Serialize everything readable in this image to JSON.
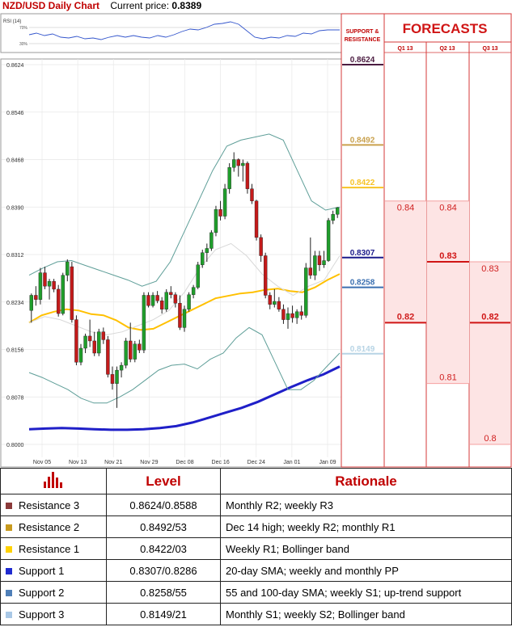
{
  "header": {
    "title": "NZD/USD Daily Chart",
    "price_label": "Current price:",
    "price_value": "0.8389"
  },
  "rsi": {
    "label": "RSI (14)",
    "upper": "70%",
    "lower": "30%"
  },
  "sr_header": [
    "SUPPORT &",
    "RESISTANCE"
  ],
  "forecast_title": "FORECASTS",
  "forecast_quarters": [
    "Q1 13",
    "Q2 13",
    "Q3 13"
  ],
  "chart_data": {
    "type": "candlestick",
    "title": "NZD/USD Daily Chart",
    "y_ticks": [
      "0.8624",
      "0.8546",
      "0.8468",
      "0.8390",
      "0.8312",
      "0.8234",
      "0.8156",
      "0.8078",
      "0.8000"
    ],
    "ylim": [
      0.8,
      0.8624
    ],
    "x_ticks": [
      "Nov 05",
      "Nov 13",
      "Nov 21",
      "Nov 29",
      "Dec 08",
      "Dec 16",
      "Dec 24",
      "Jan 01",
      "Jan 09"
    ],
    "candles": [
      [
        0.822,
        0.8248,
        0.82,
        0.8245
      ],
      [
        0.8245,
        0.826,
        0.8228,
        0.8238
      ],
      [
        0.8238,
        0.829,
        0.823,
        0.8282
      ],
      [
        0.8282,
        0.8292,
        0.8255,
        0.826
      ],
      [
        0.826,
        0.8272,
        0.8238,
        0.8268
      ],
      [
        0.8268,
        0.8272,
        0.825,
        0.8255
      ],
      [
        0.8255,
        0.8262,
        0.821,
        0.8215
      ],
      [
        0.8215,
        0.8282,
        0.8212,
        0.8278
      ],
      [
        0.8278,
        0.8304,
        0.8268,
        0.83
      ],
      [
        0.8292,
        0.83,
        0.82,
        0.8205
      ],
      [
        0.8205,
        0.8212,
        0.813,
        0.8135
      ],
      [
        0.8135,
        0.8165,
        0.813,
        0.8158
      ],
      [
        0.8158,
        0.8182,
        0.815,
        0.8178
      ],
      [
        0.8178,
        0.8205,
        0.816,
        0.817
      ],
      [
        0.817,
        0.8185,
        0.8145,
        0.815
      ],
      [
        0.815,
        0.819,
        0.8145,
        0.8185
      ],
      [
        0.8185,
        0.8192,
        0.8165,
        0.8172
      ],
      [
        0.8172,
        0.8178,
        0.811,
        0.8115
      ],
      [
        0.8115,
        0.8128,
        0.809,
        0.81
      ],
      [
        0.81,
        0.8128,
        0.806,
        0.8122
      ],
      [
        0.8122,
        0.8135,
        0.811,
        0.813
      ],
      [
        0.813,
        0.8175,
        0.8125,
        0.817
      ],
      [
        0.817,
        0.82,
        0.8135,
        0.814
      ],
      [
        0.814,
        0.817,
        0.8135,
        0.8165
      ],
      [
        0.8165,
        0.8172,
        0.815,
        0.8155
      ],
      [
        0.8155,
        0.825,
        0.815,
        0.8245
      ],
      [
        0.8245,
        0.825,
        0.8225,
        0.8228
      ],
      [
        0.8228,
        0.825,
        0.8225,
        0.8245
      ],
      [
        0.8245,
        0.8252,
        0.8232,
        0.8236
      ],
      [
        0.8236,
        0.8242,
        0.8215,
        0.8222
      ],
      [
        0.8222,
        0.8255,
        0.8218,
        0.825
      ],
      [
        0.825,
        0.826,
        0.824,
        0.8246
      ],
      [
        0.8246,
        0.825,
        0.8225,
        0.8232
      ],
      [
        0.8232,
        0.8245,
        0.8188,
        0.8192
      ],
      [
        0.8192,
        0.8228,
        0.8185,
        0.8222
      ],
      [
        0.8222,
        0.825,
        0.8218,
        0.8246
      ],
      [
        0.8246,
        0.8262,
        0.824,
        0.8258
      ],
      [
        0.8258,
        0.83,
        0.8255,
        0.8295
      ],
      [
        0.8295,
        0.832,
        0.829,
        0.8315
      ],
      [
        0.8315,
        0.833,
        0.83,
        0.8322
      ],
      [
        0.8322,
        0.8352,
        0.8318,
        0.8348
      ],
      [
        0.8348,
        0.8392,
        0.8342,
        0.8386
      ],
      [
        0.8386,
        0.84,
        0.8368,
        0.8375
      ],
      [
        0.8375,
        0.8428,
        0.837,
        0.842
      ],
      [
        0.842,
        0.8462,
        0.8412,
        0.8455
      ],
      [
        0.8455,
        0.848,
        0.8448,
        0.8468
      ],
      [
        0.8468,
        0.847,
        0.844,
        0.8458
      ],
      [
        0.8458,
        0.8468,
        0.8432,
        0.8462
      ],
      [
        0.8462,
        0.8465,
        0.8412,
        0.842
      ],
      [
        0.842,
        0.8428,
        0.8395,
        0.84
      ],
      [
        0.84,
        0.8402,
        0.8335,
        0.834
      ],
      [
        0.834,
        0.8345,
        0.83,
        0.831
      ],
      [
        0.831,
        0.8315,
        0.824,
        0.8245
      ],
      [
        0.8245,
        0.825,
        0.8222,
        0.823
      ],
      [
        0.823,
        0.8255,
        0.8225,
        0.8235
      ],
      [
        0.8235,
        0.8242,
        0.8218,
        0.8222
      ],
      [
        0.8222,
        0.823,
        0.8198,
        0.8205
      ],
      [
        0.8205,
        0.8225,
        0.819,
        0.8215
      ],
      [
        0.8215,
        0.8228,
        0.82,
        0.8208
      ],
      [
        0.8208,
        0.8222,
        0.8198,
        0.8218
      ],
      [
        0.8218,
        0.8228,
        0.8205,
        0.8212
      ],
      [
        0.8212,
        0.8298,
        0.8208,
        0.829
      ],
      [
        0.829,
        0.834,
        0.8272,
        0.8278
      ],
      [
        0.8278,
        0.8318,
        0.827,
        0.831
      ],
      [
        0.831,
        0.8318,
        0.8285,
        0.8295
      ],
      [
        0.8295,
        0.8318,
        0.829,
        0.8302
      ],
      [
        0.8302,
        0.8372,
        0.83,
        0.8368
      ],
      [
        0.8368,
        0.8384,
        0.8362,
        0.8378
      ],
      [
        0.8378,
        0.839,
        0.8372,
        0.8389
      ]
    ],
    "lines": [
      {
        "color": "#ffc000",
        "values": [
          0.82,
          0.8212,
          0.8218,
          0.8222,
          0.822,
          0.8214,
          0.8212,
          0.8204,
          0.8192,
          0.8188,
          0.819,
          0.82,
          0.821,
          0.822,
          0.823,
          0.824,
          0.8244,
          0.8248,
          0.825,
          0.8254,
          0.8256,
          0.8252,
          0.825,
          0.8258,
          0.827,
          0.828
        ]
      },
      {
        "color": "#1f1fc8",
        "values": [
          0.8025,
          0.8026,
          0.8027,
          0.8026,
          0.8025,
          0.8024,
          0.8024,
          0.8025,
          0.8027,
          0.803,
          0.8036,
          0.8044,
          0.8052,
          0.806,
          0.807,
          0.8082,
          0.8094,
          0.8105,
          0.8115,
          0.8128
        ]
      },
      {
        "color": "#5e9e98",
        "values": [
          0.8278,
          0.829,
          0.83,
          0.8302,
          0.8294,
          0.8286,
          0.8278,
          0.827,
          0.826,
          0.8268,
          0.83,
          0.835,
          0.84,
          0.845,
          0.849,
          0.85,
          0.8505,
          0.851,
          0.85,
          0.845,
          0.84,
          0.8385,
          0.839
        ]
      },
      {
        "color": "#5e9e98",
        "values": [
          0.8118,
          0.811,
          0.81,
          0.809,
          0.8076,
          0.8068,
          0.8068,
          0.8078,
          0.809,
          0.8106,
          0.8122,
          0.813,
          0.8132,
          0.8124,
          0.814,
          0.815,
          0.8175,
          0.8192,
          0.818,
          0.8135,
          0.809,
          0.809,
          0.8105,
          0.8128,
          0.815
        ]
      },
      {
        "color": "#d8d8d8",
        "values": [
          0.82,
          0.821,
          0.8205,
          0.8195,
          0.8185,
          0.818,
          0.8185,
          0.8195,
          0.8205,
          0.822,
          0.825,
          0.829,
          0.832,
          0.833,
          0.831,
          0.828,
          0.826,
          0.8245,
          0.826,
          0.827,
          0.831
        ]
      }
    ],
    "sr_levels": [
      {
        "value": 0.8624,
        "label": "0.8624",
        "color": "#4b1c41"
      },
      {
        "value": 0.8492,
        "label": "0.8492",
        "color": "#c9a14d"
      },
      {
        "value": 0.8422,
        "label": "0.8422",
        "color": "#f7c325"
      },
      {
        "value": 0.8307,
        "label": "0.8307",
        "color": "#1a1a8a"
      },
      {
        "value": 0.8258,
        "label": "0.8258",
        "color": "#3a6fb0"
      },
      {
        "value": 0.8149,
        "label": "0.8149",
        "color": "#b7d4e5"
      }
    ],
    "forecasts": [
      {
        "quarter": "Q1 13",
        "high": 0.84,
        "low": 0.82,
        "high_label": "0.84",
        "low_label": "0.82"
      },
      {
        "quarter": "Q2 13",
        "high": 0.84,
        "mid": 0.83,
        "low": 0.81,
        "high_label": "0.84",
        "mid_label": "0.83",
        "low_label": "0.81"
      },
      {
        "quarter": "Q3 13",
        "high": 0.83,
        "mid": 0.82,
        "low": 0.8,
        "high_label": "0.83",
        "mid_label": "0.82",
        "low_label": "0.8"
      }
    ]
  },
  "table": {
    "col_level": "Level",
    "col_rationale": "Rationale",
    "rows": [
      {
        "name": "Resistance 3",
        "level": "0.8624/0.8588",
        "rationale": "Monthly R2; weekly R3",
        "color": "#8b3a3a"
      },
      {
        "name": "Resistance 2",
        "level": "0.8492/53",
        "rationale": "Dec 14 high; weekly R2; monthly R1",
        "color": "#c89a1e"
      },
      {
        "name": "Resistance 1",
        "level": "0.8422/03",
        "rationale": "Weekly R1; Bollinger band",
        "color": "#ffd200"
      },
      {
        "name": "Support 1",
        "level": "0.8307/0.8286",
        "rationale": "20-day SMA; weekly and monthly PP",
        "color": "#1f2bd0"
      },
      {
        "name": "Support 2",
        "level": "0.8258/55",
        "rationale": "55 and 100-day SMA; weekly S1; up-trend support",
        "color": "#4f7fb8"
      },
      {
        "name": "Support 3",
        "level": "0.8149/21",
        "rationale": "Monthly S1; weekly S2; Bollinger band",
        "color": "#a9c8e6"
      }
    ]
  }
}
